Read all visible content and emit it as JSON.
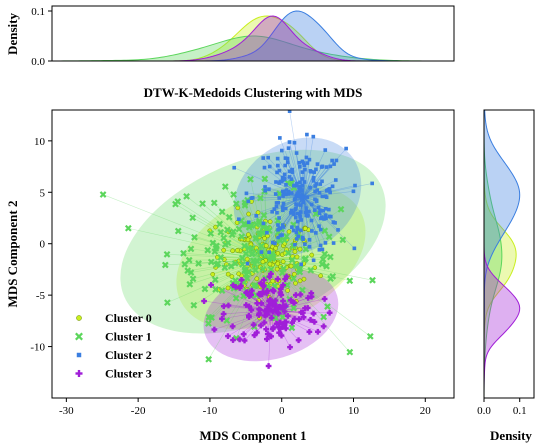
{
  "chart_data": {
    "type": "scatter",
    "title": "DTW-K-Medoids Clustering with MDS",
    "xlabel": "MDS Component 1",
    "ylabel": "MDS Component 2",
    "xlim": [
      -32,
      24
    ],
    "ylim": [
      -15,
      13
    ],
    "xticks": [
      -30,
      -20,
      -10,
      0,
      10,
      20
    ],
    "yticks": [
      -10,
      -5,
      0,
      5,
      10
    ],
    "top_density_label": "Density",
    "top_density_ticks": [
      0.0,
      0.1
    ],
    "right_density_label": "Density",
    "right_density_ticks": [
      0.0,
      0.1
    ],
    "legend_position": "lower-left",
    "clusters": [
      {
        "name": "Cluster 0",
        "marker": "circle",
        "color": "#c9ef1f",
        "center": [
          -2,
          -1.5
        ],
        "spread": [
          3.5,
          2.2
        ],
        "count": 160,
        "ellipse": {
          "cx": -1.5,
          "cy": -1.3,
          "rx": 14,
          "ry": 6.2,
          "angle": -26
        },
        "medoid": [
          -1.5,
          -1.5
        ],
        "x_density_peak": 0.09,
        "y_density_peak": 0.09
      },
      {
        "name": "Cluster 1",
        "marker": "x",
        "color": "#5cd65c",
        "center": [
          -4,
          -1
        ],
        "spread": [
          6,
          3.2
        ],
        "count": 190,
        "ellipse": {
          "cx": -4,
          "cy": 0.2,
          "rx": 19.5,
          "ry": 7.8,
          "angle": -23
        },
        "medoid": [
          -2,
          -1.5
        ],
        "x_density_peak": 0.05,
        "y_density_peak": 0.05
      },
      {
        "name": "Cluster 2",
        "marker": "square",
        "color": "#3a7ee0",
        "center": [
          2.5,
          4.3
        ],
        "spread": [
          3.2,
          2.6
        ],
        "count": 230,
        "ellipse": {
          "cx": 2.2,
          "cy": 4.6,
          "rx": 9.4,
          "ry": 5.3,
          "angle": -34
        },
        "medoid": [
          3,
          4.5
        ],
        "x_density_peak": 0.1,
        "y_density_peak": 0.1
      },
      {
        "name": "Cluster 3",
        "marker": "plus",
        "color": "#a01ed8",
        "center": [
          -1.2,
          -6.5
        ],
        "spread": [
          3.3,
          1.9
        ],
        "count": 140,
        "ellipse": {
          "cx": -1.5,
          "cy": -6.9,
          "rx": 9.6,
          "ry": 4.3,
          "angle": -16
        },
        "medoid": [
          -1.5,
          -6.5
        ],
        "x_density_peak": 0.09,
        "y_density_peak": 0.1
      }
    ]
  }
}
